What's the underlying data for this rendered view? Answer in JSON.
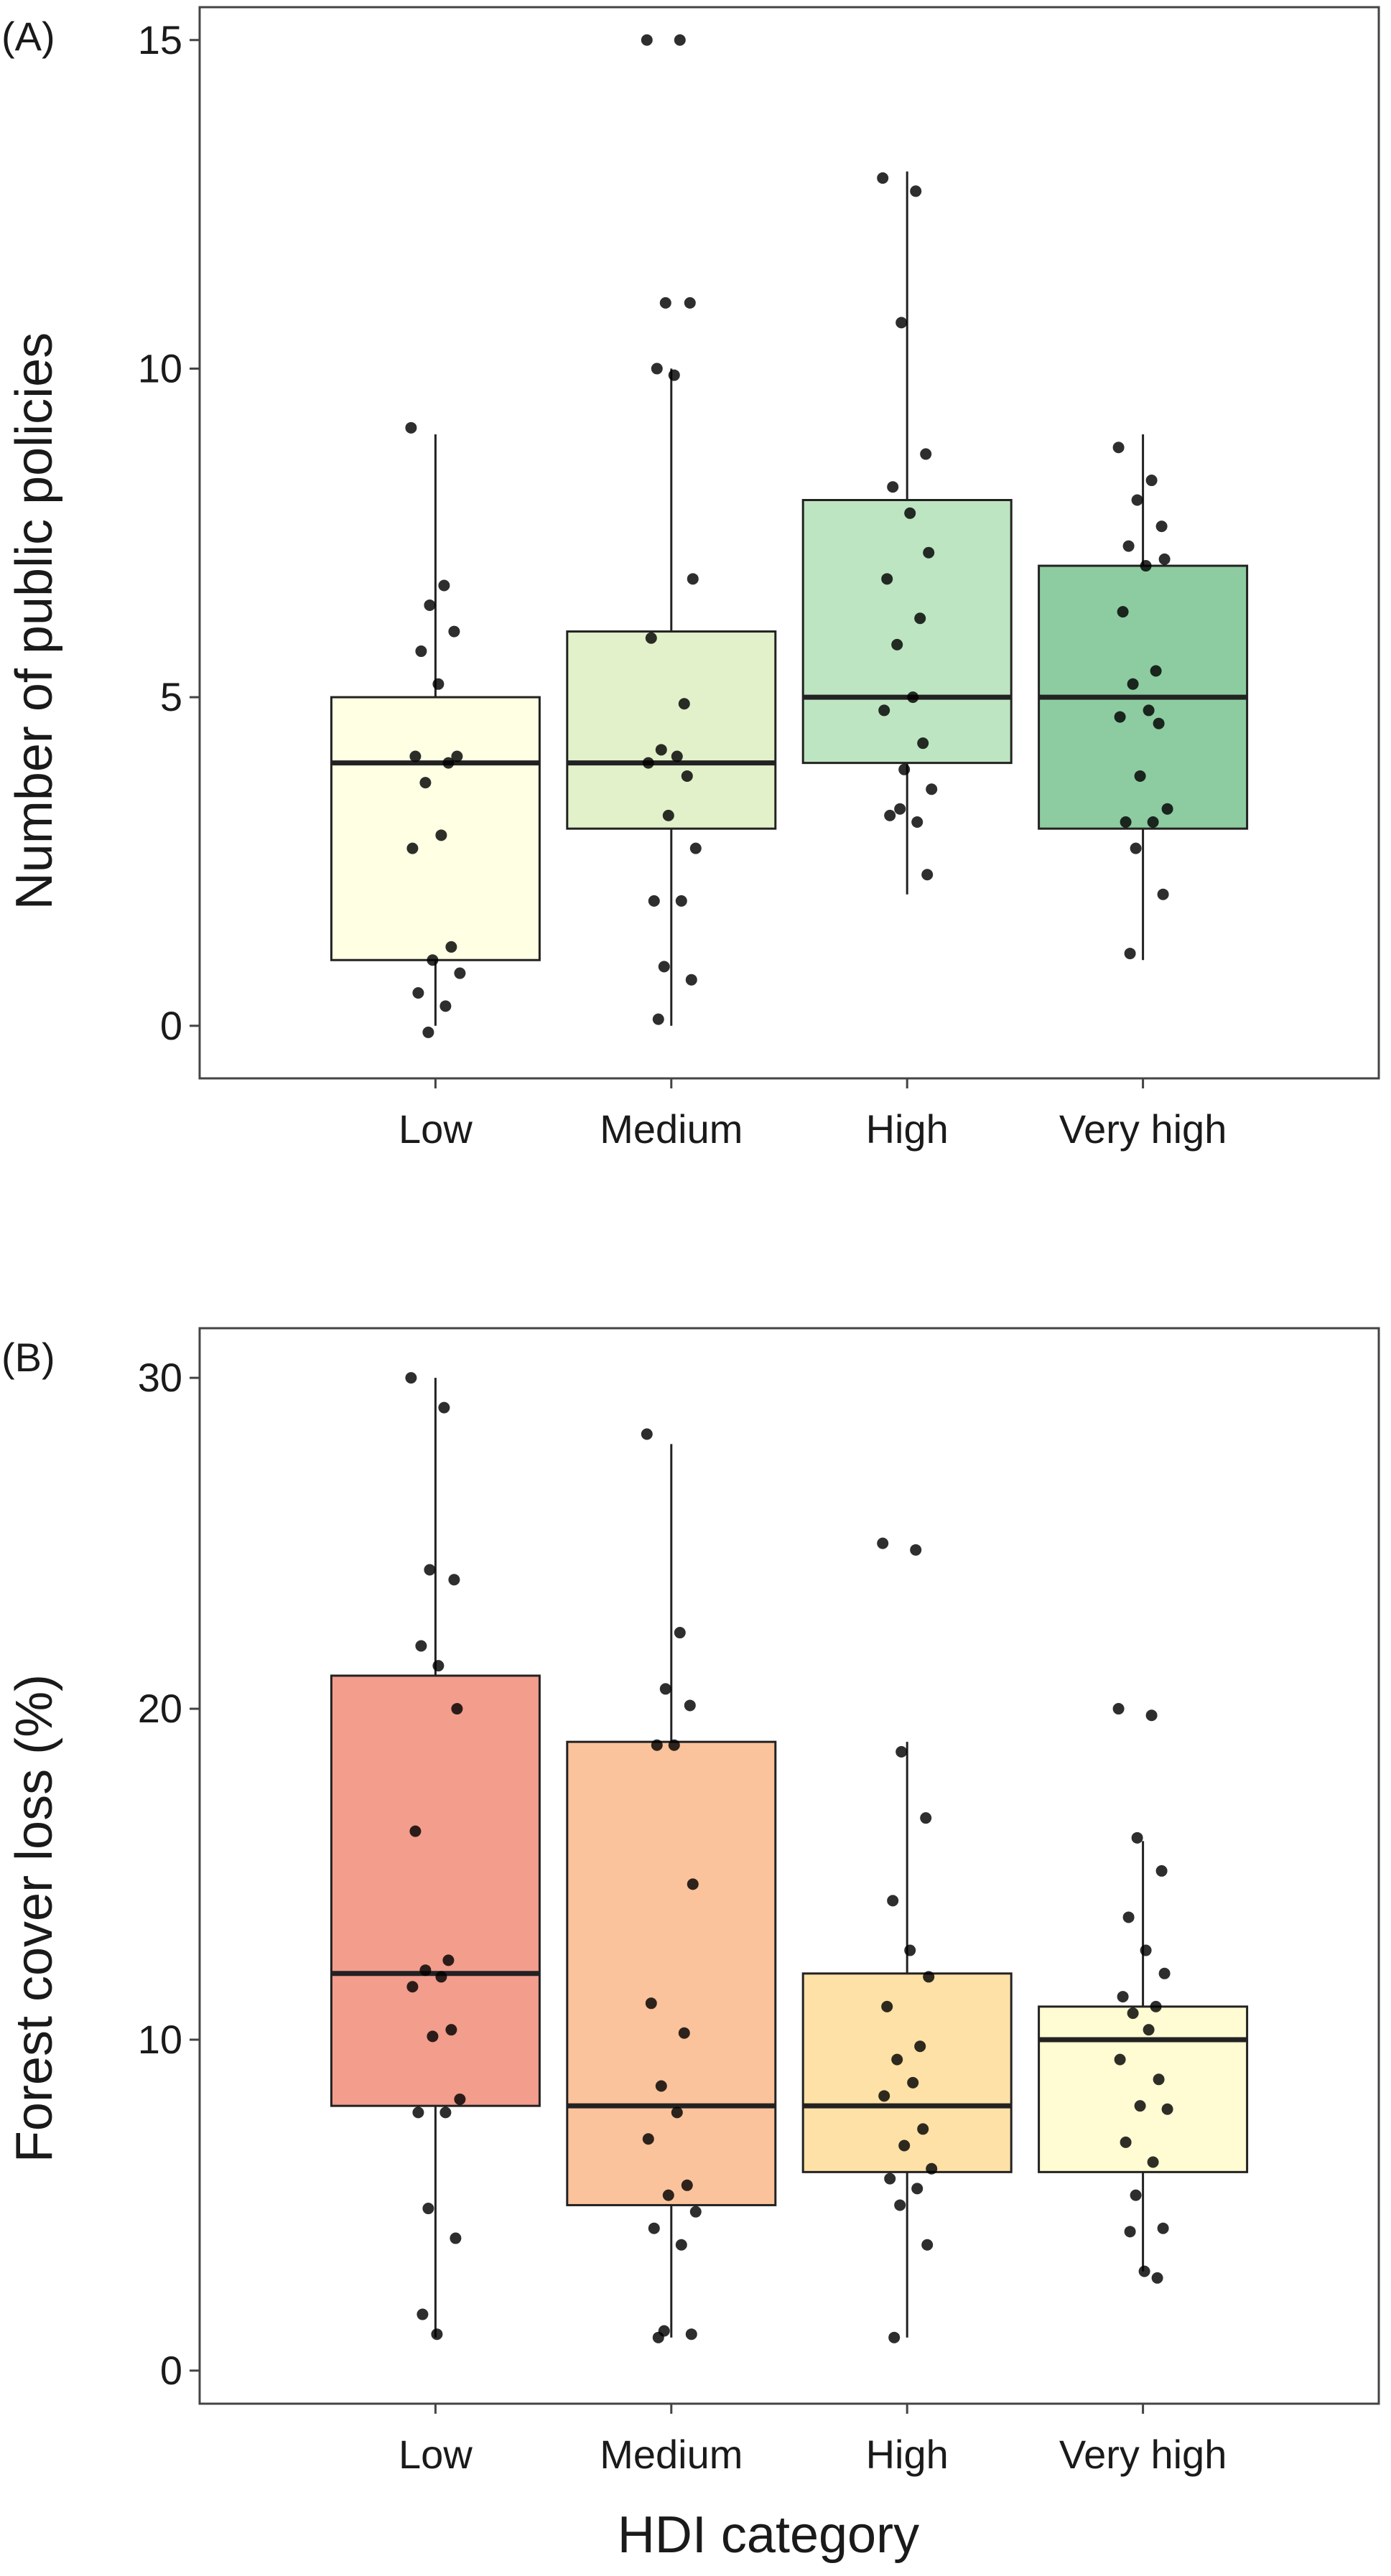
{
  "chart_data": [
    {
      "type": "boxplot",
      "panel_label": "(A)",
      "ylabel": "Number of public policies",
      "xlabel": "",
      "ylim": [
        -0.8,
        15.5
      ],
      "yticks": [
        0,
        5,
        10,
        15
      ],
      "categories": [
        "Low",
        "Medium",
        "High",
        "Very high"
      ],
      "colors": [
        "#ffffe4",
        "#e2f1c9",
        "#bde5c1",
        "#8dcca0"
      ],
      "grid": false,
      "legend": "none",
      "boxes": [
        {
          "category": "Low",
          "whisker_low": 0,
          "q1": 1,
          "median": 4,
          "q3": 5,
          "whisker_high": 9
        },
        {
          "category": "Medium",
          "whisker_low": 0,
          "q1": 3,
          "median": 4,
          "q3": 6,
          "whisker_high": 10
        },
        {
          "category": "High",
          "whisker_low": 2,
          "q1": 4,
          "median": 5,
          "q3": 8,
          "whisker_high": 13
        },
        {
          "category": "Very high",
          "whisker_low": 1,
          "q1": 3,
          "median": 5,
          "q3": 7,
          "whisker_high": 9
        }
      ],
      "points": [
        {
          "category": "Low",
          "y": [
            9.1,
            6.7,
            6.4,
            6.0,
            5.7,
            5.2,
            4.1,
            4.1,
            4.0,
            3.7,
            2.9,
            2.7,
            1.2,
            1.0,
            0.8,
            0.5,
            0.3,
            -0.1
          ]
        },
        {
          "category": "Medium",
          "y": [
            15.0,
            15.0,
            11.0,
            11.0,
            10.0,
            9.9,
            6.8,
            5.9,
            4.9,
            4.2,
            4.1,
            4.0,
            3.8,
            3.2,
            2.7,
            1.9,
            1.9,
            0.9,
            0.7,
            0.1
          ]
        },
        {
          "category": "High",
          "y": [
            12.9,
            12.7,
            10.7,
            8.7,
            8.2,
            7.8,
            7.2,
            6.8,
            6.2,
            5.8,
            5.0,
            4.8,
            4.3,
            3.9,
            3.6,
            3.2,
            3.1,
            3.3,
            2.3
          ]
        },
        {
          "category": "Very high",
          "y": [
            8.8,
            8.3,
            8.0,
            7.6,
            7.3,
            7.0,
            7.1,
            6.3,
            5.4,
            5.2,
            4.8,
            4.7,
            4.6,
            3.8,
            3.3,
            3.1,
            3.1,
            2.7,
            2.0,
            1.1
          ]
        }
      ]
    },
    {
      "type": "boxplot",
      "panel_label": "(B)",
      "ylabel": "Forest cover loss (%)",
      "xlabel": "HDI category",
      "ylim": [
        -1,
        31.5
      ],
      "yticks": [
        0,
        10,
        20,
        30
      ],
      "categories": [
        "Low",
        "Medium",
        "High",
        "Very high"
      ],
      "colors": [
        "#f39d8d",
        "#fbc39b",
        "#fde1a6",
        "#fffbd2"
      ],
      "grid": false,
      "legend": "none",
      "boxes": [
        {
          "category": "Low",
          "whisker_low": 1,
          "q1": 8,
          "median": 12,
          "q3": 21,
          "whisker_high": 30
        },
        {
          "category": "Medium",
          "whisker_low": 1,
          "q1": 5,
          "median": 8,
          "q3": 19,
          "whisker_high": 28
        },
        {
          "category": "High",
          "whisker_low": 1,
          "q1": 6,
          "median": 8,
          "q3": 12,
          "whisker_high": 19
        },
        {
          "category": "Very high",
          "whisker_low": 3,
          "q1": 6,
          "median": 10,
          "q3": 11,
          "whisker_high": 16
        }
      ],
      "points": [
        {
          "category": "Low",
          "y": [
            30.0,
            29.1,
            24.2,
            23.9,
            21.9,
            21.3,
            20.0,
            16.3,
            12.4,
            12.1,
            11.9,
            11.6,
            10.3,
            10.1,
            8.2,
            7.8,
            7.8,
            4.9,
            4.0,
            1.7,
            1.1
          ]
        },
        {
          "category": "Medium",
          "y": [
            28.3,
            22.3,
            20.6,
            20.1,
            18.9,
            18.9,
            14.7,
            11.1,
            10.2,
            8.6,
            7.8,
            7.0,
            5.6,
            5.3,
            4.8,
            4.3,
            3.8,
            1.2,
            1.1,
            1.0
          ]
        },
        {
          "category": "High",
          "y": [
            25.0,
            24.8,
            18.7,
            16.7,
            14.2,
            12.7,
            11.9,
            11.0,
            9.8,
            9.4,
            8.7,
            8.3,
            7.3,
            6.8,
            6.1,
            5.8,
            5.5,
            5.0,
            3.8,
            1.0
          ]
        },
        {
          "category": "Very high",
          "y": [
            20.0,
            19.8,
            16.1,
            15.1,
            13.7,
            12.7,
            12.0,
            11.3,
            11.0,
            10.8,
            10.3,
            9.4,
            8.8,
            8.0,
            7.9,
            6.9,
            6.3,
            5.3,
            4.3,
            4.2,
            3.0,
            2.8
          ]
        }
      ]
    }
  ]
}
